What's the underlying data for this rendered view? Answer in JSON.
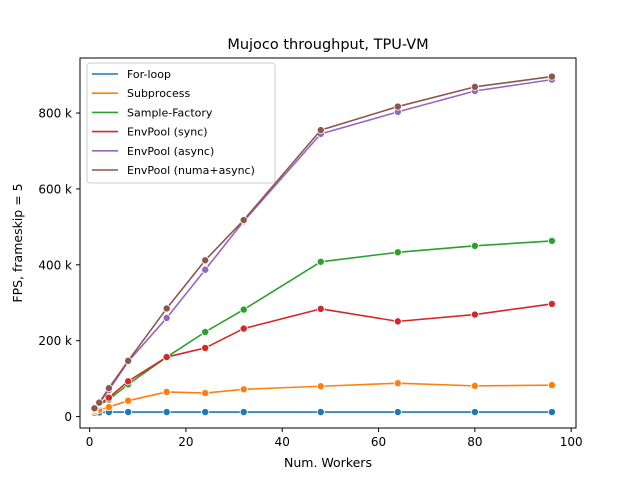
{
  "chart_data": {
    "type": "line",
    "title": "Mujoco throughput, TPU-VM",
    "xlabel": "Num. Workers",
    "ylabel": "FPS, frameskip = 5",
    "xlim": [
      -2,
      101
    ],
    "ylim": [
      -30000,
      945000
    ],
    "xticks": [
      0,
      20,
      40,
      60,
      80,
      100
    ],
    "xtick_labels": [
      "0",
      "20",
      "40",
      "60",
      "80",
      "100"
    ],
    "yticks": [
      0,
      200000,
      400000,
      600000,
      800000
    ],
    "ytick_labels": [
      "0",
      "200 k",
      "400 k",
      "600 k",
      "800 k"
    ],
    "grid": false,
    "legend_position": "top-left",
    "series": [
      {
        "name": "For-loop",
        "color": "#1f77b4",
        "x": [
          1,
          2,
          4,
          8,
          16,
          24,
          32,
          48,
          64,
          80,
          96
        ],
        "y": [
          10000,
          11000,
          12000,
          12000,
          12000,
          12000,
          12000,
          12000,
          12000,
          12000,
          12000
        ]
      },
      {
        "name": "Subprocess",
        "color": "#ff7f0e",
        "x": [
          1,
          2,
          4,
          8,
          16,
          24,
          32,
          48,
          64,
          80,
          96
        ],
        "y": [
          10000,
          18000,
          25000,
          42000,
          65000,
          62000,
          72000,
          80000,
          88000,
          81000,
          83000
        ]
      },
      {
        "name": "Sample-Factory",
        "color": "#2ca02c",
        "x": [
          1,
          2,
          4,
          8,
          16,
          24,
          32,
          48,
          64,
          80,
          96
        ],
        "y": [
          15000,
          30000,
          45000,
          85000,
          157000,
          223000,
          282000,
          408000,
          433000,
          450000,
          463000
        ]
      },
      {
        "name": "EnvPool (sync)",
        "color": "#d62728",
        "x": [
          1,
          2,
          4,
          8,
          16,
          24,
          32,
          48,
          64,
          80,
          96
        ],
        "y": [
          18000,
          33000,
          50000,
          93000,
          157000,
          181000,
          232000,
          284000,
          251000,
          269000,
          297000
        ]
      },
      {
        "name": "EnvPool (async)",
        "color": "#9467bd",
        "x": [
          1,
          2,
          4,
          8,
          16,
          24,
          32,
          48,
          64,
          80,
          96
        ],
        "y": [
          20000,
          35000,
          70000,
          145000,
          260000,
          387000,
          515000,
          745000,
          803000,
          858000,
          888000
        ]
      },
      {
        "name": "EnvPool (numa+async)",
        "color": "#8c564b",
        "x": [
          1,
          2,
          4,
          8,
          16,
          24,
          32,
          48,
          64,
          80,
          96
        ],
        "y": [
          22000,
          37000,
          75000,
          147000,
          285000,
          412000,
          518000,
          755000,
          817000,
          869000,
          896000
        ]
      }
    ]
  }
}
